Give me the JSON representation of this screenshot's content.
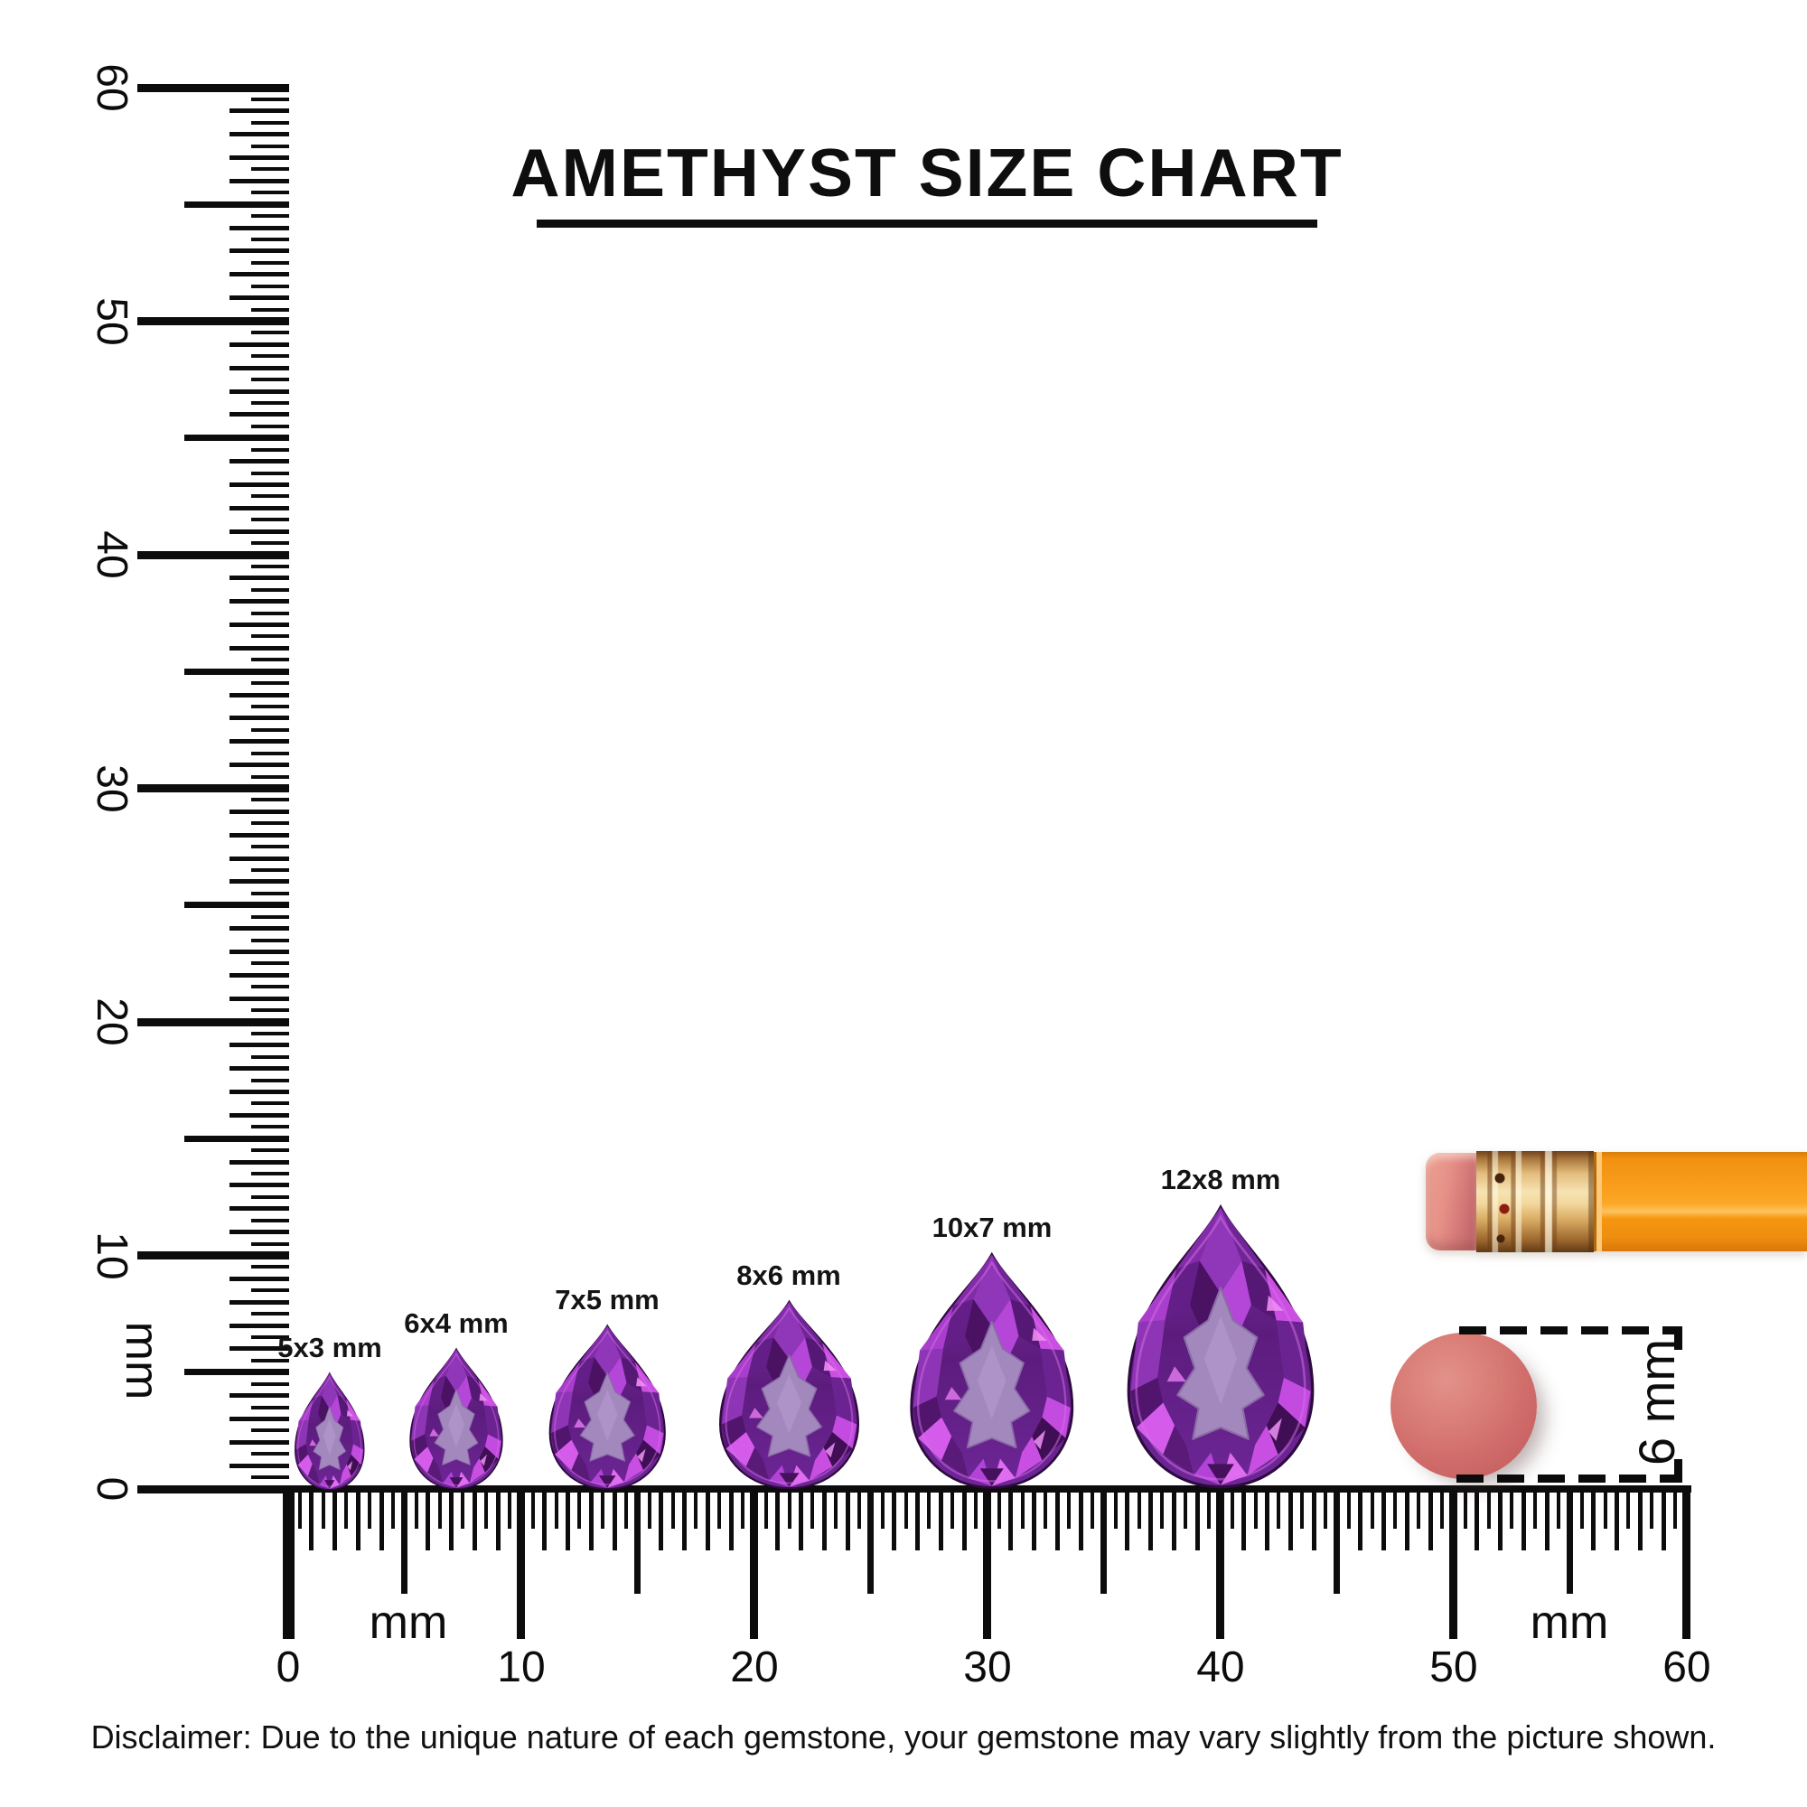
{
  "title": "AMETHYST SIZE CHART",
  "disclaimer": "Disclaimer: Due to the unique nature of each gemstone, your gemstone may vary slightly from the picture shown.",
  "left_ruler": {
    "unit_label": "mm",
    "labels": [
      "60",
      "50",
      "40",
      "30",
      "20",
      "10",
      "0"
    ],
    "range_mm": [
      0,
      60
    ]
  },
  "bottom_ruler": {
    "unit_label_left": "mm",
    "unit_label_right": "mm",
    "labels": [
      "0",
      "10",
      "20",
      "30",
      "40",
      "50",
      "60"
    ],
    "range_mm": [
      0,
      60
    ]
  },
  "gems": [
    {
      "label": "5x3 mm",
      "width_mm": 3,
      "height_mm": 5
    },
    {
      "label": "6x4 mm",
      "width_mm": 4,
      "height_mm": 6
    },
    {
      "label": "7x5 mm",
      "width_mm": 5,
      "height_mm": 7
    },
    {
      "label": "8x6 mm",
      "width_mm": 6,
      "height_mm": 8
    },
    {
      "label": "10x7 mm",
      "width_mm": 7,
      "height_mm": 10
    },
    {
      "label": "12x8 mm",
      "width_mm": 8,
      "height_mm": 12
    }
  ],
  "gem_shape": "pear",
  "size_reference": {
    "circle_height_label": "6 mm",
    "objects": [
      "pencil",
      "round-disc"
    ]
  },
  "colors": {
    "ink": "#0c0c0c",
    "amethyst_dark": "#4b1264",
    "amethyst_mid": "#7c2ca3",
    "amethyst_flash": "#cb50e2",
    "amethyst_table": "#a388be",
    "pencil_orange": "#f89e1d",
    "ferrule_gold": "#e3bc7c",
    "eraser_pink": "#e69188",
    "disc_red": "#d4726f"
  }
}
